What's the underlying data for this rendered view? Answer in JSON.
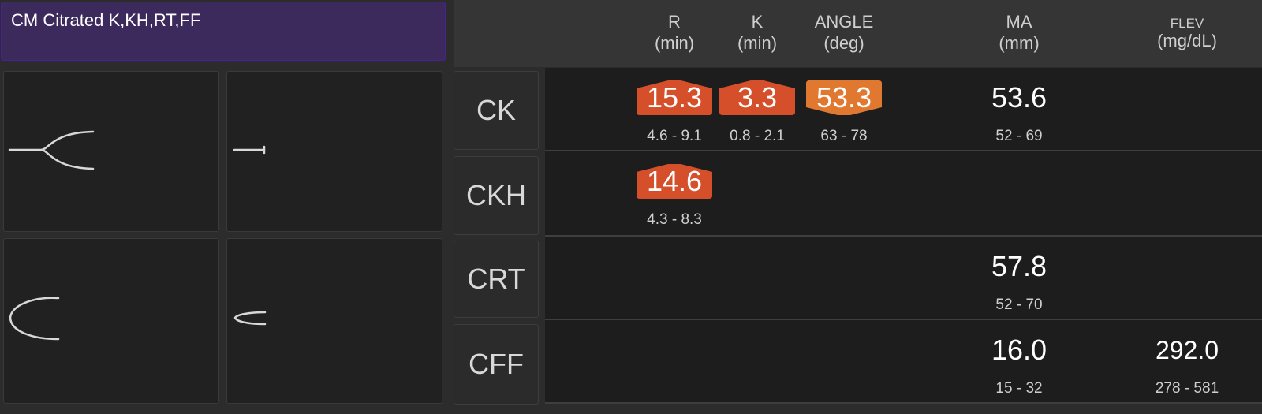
{
  "header": {
    "title": "CM Citrated K,KH,RT,FF"
  },
  "columns": [
    {
      "name": "R",
      "unit": "(min)"
    },
    {
      "name": "K",
      "unit": "(min)"
    },
    {
      "name": "ANGLE",
      "unit": "(deg)"
    },
    {
      "name": "MA",
      "unit": "(mm)"
    },
    {
      "name": "FLEV",
      "unit": "(mg/dL)"
    }
  ],
  "rows": [
    {
      "label": "CK",
      "values": [
        "15.3",
        "3.3",
        "53.3",
        "53.6",
        null
      ],
      "ranges": [
        "4.6 - 9.1",
        "0.8 - 2.1",
        "63 - 78",
        "52 - 69",
        null
      ],
      "flags": [
        "high",
        "high",
        "low",
        null,
        null
      ]
    },
    {
      "label": "CKH",
      "values": [
        "14.6",
        null,
        null,
        null,
        null
      ],
      "ranges": [
        "4.3 - 8.3",
        null,
        null,
        null,
        null
      ],
      "flags": [
        "high",
        null,
        null,
        null,
        null
      ]
    },
    {
      "label": "CRT",
      "values": [
        null,
        null,
        null,
        "57.8",
        null
      ],
      "ranges": [
        null,
        null,
        null,
        "52 - 70",
        null
      ],
      "flags": [
        null,
        null,
        null,
        null,
        null
      ]
    },
    {
      "label": "CFF",
      "values": [
        null,
        null,
        null,
        "16.0",
        "292.0"
      ],
      "ranges": [
        null,
        null,
        null,
        "15 - 32",
        "278 - 581"
      ],
      "flags": [
        null,
        null,
        null,
        null,
        null
      ]
    }
  ]
}
